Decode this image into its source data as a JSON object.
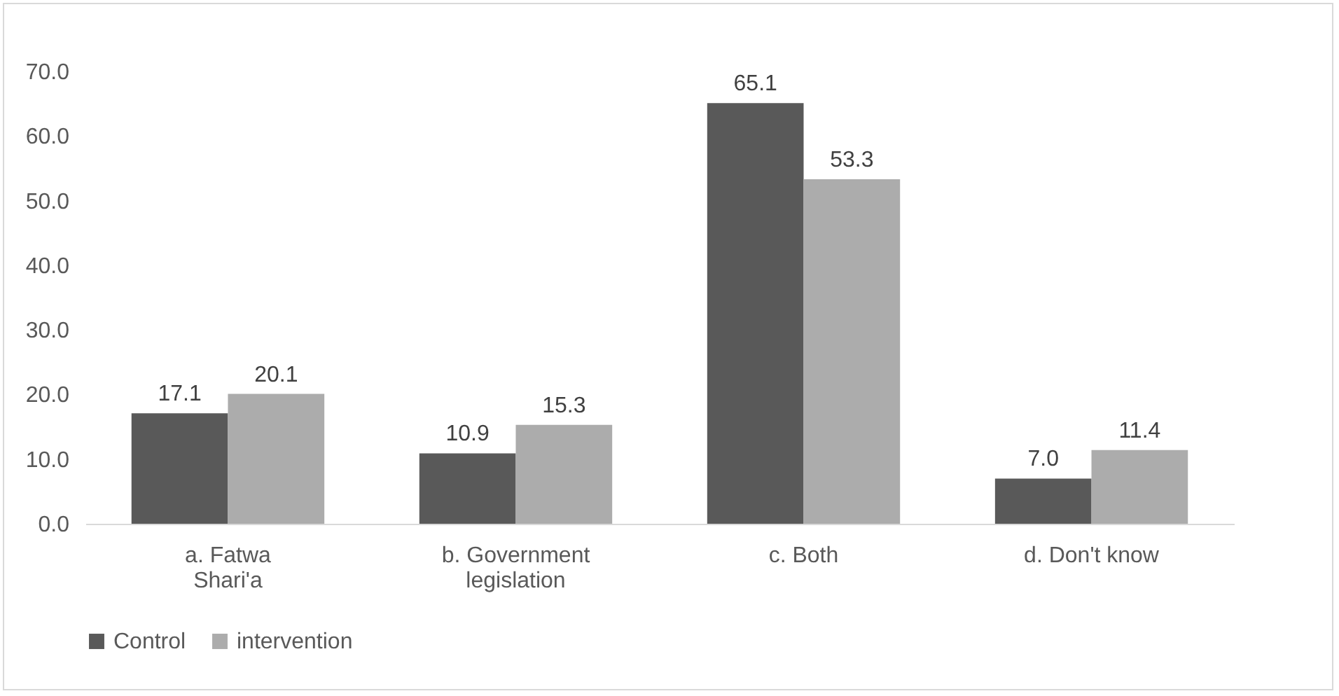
{
  "chart_data": {
    "type": "bar",
    "categories": [
      "a. Fatwa Shari'a",
      "b. Government legislation",
      "c. Both",
      "d. Don't know"
    ],
    "series": [
      {
        "name": "Control",
        "color": "#595959",
        "values": [
          17.1,
          10.9,
          65.1,
          7.0
        ],
        "value_labels": [
          "17.1",
          "10.9",
          "65.1",
          "7.0"
        ]
      },
      {
        "name": "intervention",
        "color": "#acacac",
        "values": [
          20.1,
          15.3,
          53.3,
          11.4
        ],
        "value_labels": [
          "20.1",
          "15.3",
          "53.3",
          "11.4"
        ]
      }
    ],
    "ylim": [
      0,
      70
    ],
    "yticks": [
      {
        "value": 0,
        "label": "0.0"
      },
      {
        "value": 10,
        "label": "10.0"
      },
      {
        "value": 20,
        "label": "20.0"
      },
      {
        "value": 30,
        "label": "30.0"
      },
      {
        "value": 40,
        "label": "40.0"
      },
      {
        "value": 50,
        "label": "50.0"
      },
      {
        "value": 60,
        "label": "60.0"
      },
      {
        "value": 70,
        "label": "70.0"
      }
    ],
    "grid": false,
    "legend": "bottom"
  }
}
